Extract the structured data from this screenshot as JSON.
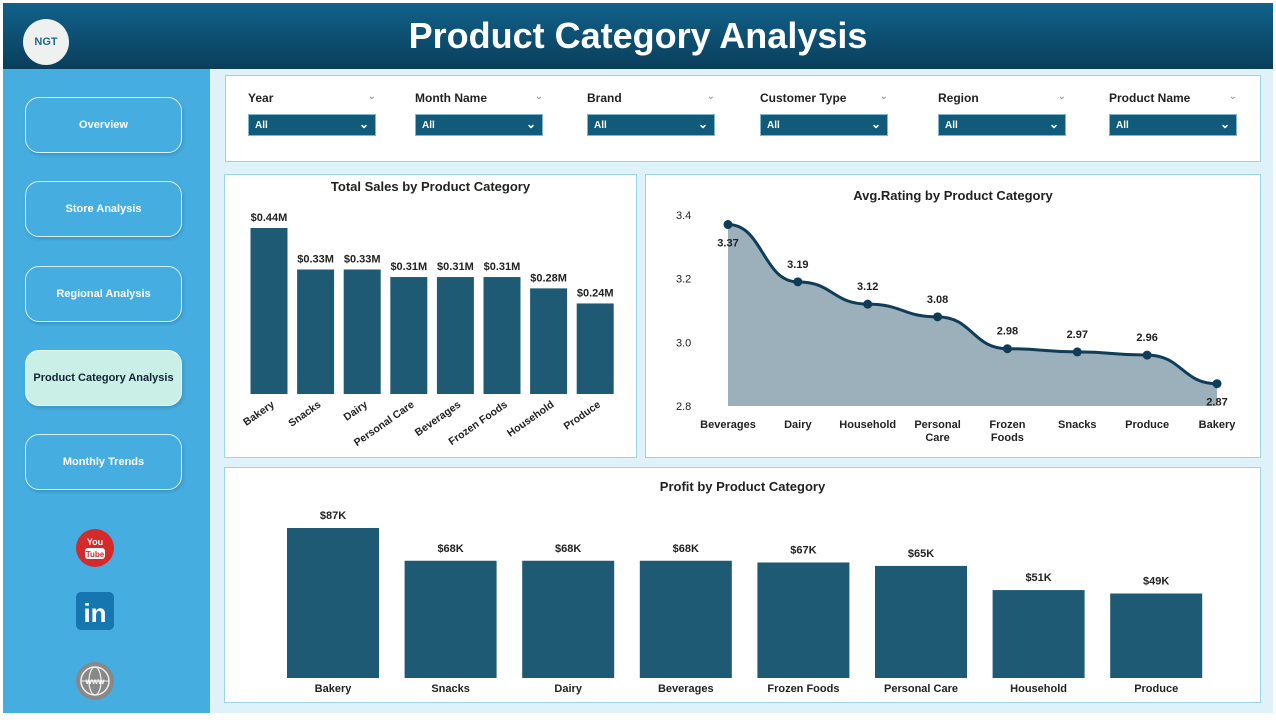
{
  "header": {
    "title": "Product Category Analysis",
    "logo_text": "NGT"
  },
  "sidebar": {
    "items": [
      {
        "label": "Overview"
      },
      {
        "label": "Store Analysis"
      },
      {
        "label": "Regional Analysis"
      },
      {
        "label": "Product Category Analysis",
        "active": true
      },
      {
        "label": "Monthly Trends"
      }
    ],
    "social": [
      "youtube-icon",
      "linkedin-icon",
      "globe-icon"
    ]
  },
  "filters": [
    {
      "label": "Year",
      "value": "All"
    },
    {
      "label": "Month Name",
      "value": "All"
    },
    {
      "label": "Brand",
      "value": "All"
    },
    {
      "label": "Customer Type",
      "value": "All"
    },
    {
      "label": "Region",
      "value": "All"
    },
    {
      "label": "Product Name",
      "value": "All"
    }
  ],
  "colors": {
    "bar": "#1f5a74",
    "area": "#9bb0bb",
    "line": "#0f3d57",
    "header": "#0d4f70",
    "sidebar": "#45ade0"
  },
  "chart_data": [
    {
      "type": "bar",
      "title": "Total Sales by Product Category",
      "categories": [
        "Bakery",
        "Snacks",
        "Dairy",
        "Personal Care",
        "Beverages",
        "Frozen Foods",
        "Household",
        "Produce"
      ],
      "values": [
        0.44,
        0.33,
        0.33,
        0.31,
        0.31,
        0.31,
        0.28,
        0.24
      ],
      "labels": [
        "$0.44M",
        "$0.33M",
        "$0.33M",
        "$0.31M",
        "$0.31M",
        "$0.31M",
        "$0.28M",
        "$0.24M"
      ],
      "unit": "$M",
      "ylim": [
        0,
        0.44
      ]
    },
    {
      "type": "area",
      "title": "Avg.Rating by Product Category",
      "categories": [
        "Beverages",
        "Dairy",
        "Household",
        "Personal Care",
        "Frozen Foods",
        "Snacks",
        "Produce",
        "Bakery"
      ],
      "values": [
        3.37,
        3.19,
        3.12,
        3.08,
        2.98,
        2.97,
        2.96,
        2.87
      ],
      "labels": [
        "3.37",
        "3.19",
        "3.12",
        "3.08",
        "2.98",
        "2.97",
        "2.96",
        "2.87"
      ],
      "ylim": [
        2.8,
        3.4
      ],
      "yticks": [
        "3.4",
        "3.2",
        "3.0",
        "2.8"
      ]
    },
    {
      "type": "bar",
      "title": "Profit by Product Category",
      "categories": [
        "Bakery",
        "Snacks",
        "Dairy",
        "Beverages",
        "Frozen Foods",
        "Personal Care",
        "Household",
        "Produce"
      ],
      "values": [
        87,
        68,
        68,
        68,
        67,
        65,
        51,
        49
      ],
      "labels": [
        "$87K",
        "$68K",
        "$68K",
        "$68K",
        "$67K",
        "$65K",
        "$51K",
        "$49K"
      ],
      "unit": "$K",
      "ylim": [
        0,
        87
      ]
    }
  ]
}
